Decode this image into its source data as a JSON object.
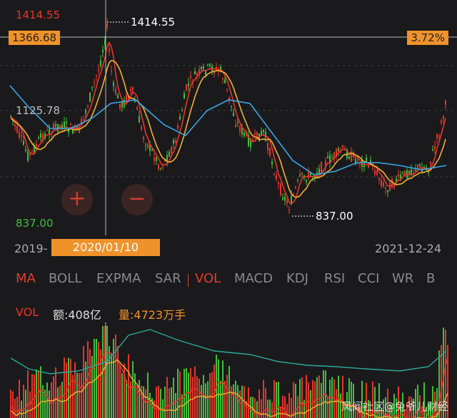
{
  "price_axis": {
    "high_label": "1414.55",
    "ref_label": "1366.68",
    "mid_label": "1125.78",
    "low_label": "837.00",
    "high_marker": "1414.55",
    "low_marker": "837.00",
    "pct_label": "3.72%"
  },
  "zoom": {
    "plus": "+",
    "minus": "−"
  },
  "dates": {
    "start": "2019-",
    "selected": "2020/01/10",
    "end": "2021-12-24"
  },
  "indicator_tabs": [
    {
      "label": "MA",
      "active": true
    },
    {
      "label": "BOLL",
      "active": false
    },
    {
      "label": "EXPMA",
      "active": false
    },
    {
      "label": "SAR",
      "active": false
    },
    {
      "label": "VOL",
      "active": true
    },
    {
      "label": "MACD",
      "active": false
    },
    {
      "label": "KDJ",
      "active": false
    },
    {
      "label": "RSI",
      "active": false
    },
    {
      "label": "CCI",
      "active": false
    },
    {
      "label": "WR",
      "active": false
    },
    {
      "label": "B",
      "active": false
    }
  ],
  "volume_info": {
    "name": "VOL",
    "amount": "额:408亿",
    "quantity": "量:4723万手"
  },
  "watermark": "风闻社区@兔爷儿财经",
  "colors": {
    "up": "#e8352b",
    "down": "#3fc03a",
    "accent": "#f0922a",
    "ma1": "#e8352b",
    "ma2": "#f0b030",
    "ma3": "#3aa6e8",
    "vol_ma": "#2aa89a"
  }
}
